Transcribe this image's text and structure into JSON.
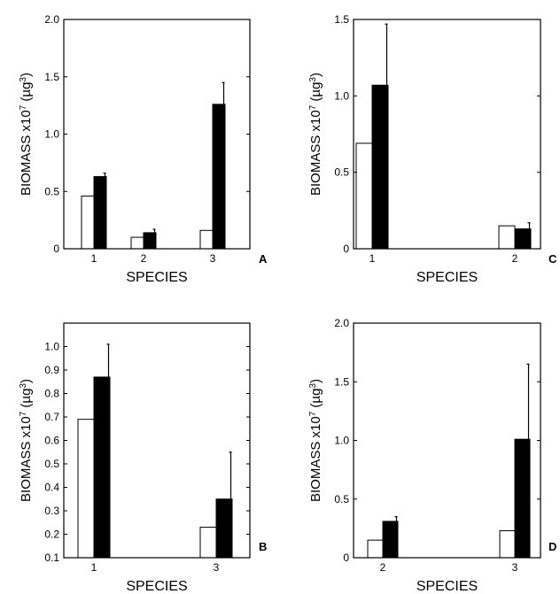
{
  "chart_data": [
    {
      "type": "bar",
      "panel_label": "A",
      "xlabel": "SPECIES",
      "ylabel": "BIOMASS x10",
      "ylabel_exp": "7",
      "ylabel_unit": " (µg",
      "ylabel_unit_exp": "3",
      "ylabel_close": ")",
      "categories": [
        "1",
        "2",
        "3"
      ],
      "ylim": [
        0,
        2.0
      ],
      "yticks": [
        0,
        0.5,
        1.0,
        1.5,
        2.0
      ],
      "ytick_labels": [
        "0",
        "0.5",
        "1.0",
        "1.5",
        "2.0"
      ],
      "series": [
        {
          "fill": "open",
          "color": "#ffffff",
          "values": [
            0.46,
            0.1,
            0.16
          ],
          "errors": [
            null,
            null,
            null
          ]
        },
        {
          "fill": "solid",
          "color": "#000000",
          "values": [
            0.63,
            0.14,
            1.26
          ],
          "errors": [
            0.66,
            0.17,
            1.45
          ]
        }
      ]
    },
    {
      "type": "bar",
      "panel_label": "C",
      "xlabel": "SPECIES",
      "ylabel": "BIOMASS x10",
      "ylabel_exp": "7",
      "ylabel_unit": " (µg",
      "ylabel_unit_exp": "3",
      "ylabel_close": ")",
      "categories": [
        "1",
        "2"
      ],
      "ylim": [
        0,
        1.5
      ],
      "yticks": [
        0,
        0.5,
        1.0,
        1.5
      ],
      "ytick_labels": [
        "0",
        "0.5",
        "1.0",
        "1.5"
      ],
      "series": [
        {
          "fill": "open",
          "color": "#ffffff",
          "values": [
            0.69,
            0.15
          ],
          "errors": [
            null,
            null
          ]
        },
        {
          "fill": "solid",
          "color": "#000000",
          "values": [
            1.07,
            0.13
          ],
          "errors": [
            1.47,
            0.17
          ]
        }
      ]
    },
    {
      "type": "bar",
      "panel_label": "B",
      "xlabel": "SPECIES",
      "ylabel": "BIOMASS x10",
      "ylabel_exp": "7",
      "ylabel_unit": " (µg",
      "ylabel_unit_exp": "3",
      "ylabel_close": ")",
      "categories": [
        "1",
        "3"
      ],
      "ylim": [
        0.1,
        1.1
      ],
      "yticks": [
        0.1,
        0.2,
        0.3,
        0.4,
        0.5,
        0.6,
        0.7,
        0.8,
        0.9,
        1.0
      ],
      "ytick_labels": [
        "0.1",
        "0.2",
        "0.3",
        "0.4",
        "0.5",
        "0.6",
        "0.7",
        "0.8",
        "0.9",
        "1.0"
      ],
      "series": [
        {
          "fill": "open",
          "color": "#ffffff",
          "values": [
            0.69,
            0.23
          ],
          "errors": [
            null,
            null
          ]
        },
        {
          "fill": "solid",
          "color": "#000000",
          "values": [
            0.87,
            0.35
          ],
          "errors": [
            1.01,
            0.55
          ]
        }
      ]
    },
    {
      "type": "bar",
      "panel_label": "D",
      "xlabel": "SPECIES",
      "ylabel": "BIOMASS x10",
      "ylabel_exp": "7",
      "ylabel_unit": " (µg",
      "ylabel_unit_exp": "3",
      "ylabel_close": ")",
      "categories": [
        "2",
        "3"
      ],
      "ylim": [
        0,
        2.0
      ],
      "yticks": [
        0,
        0.5,
        1.0,
        1.5,
        2.0
      ],
      "ytick_labels": [
        "0",
        "0.5",
        "1.0",
        "1.5",
        "2.0"
      ],
      "series": [
        {
          "fill": "open",
          "color": "#ffffff",
          "values": [
            0.15,
            0.23
          ],
          "errors": [
            null,
            null
          ]
        },
        {
          "fill": "solid",
          "color": "#000000",
          "values": [
            0.31,
            1.01
          ],
          "errors": [
            0.35,
            1.65
          ]
        }
      ]
    }
  ]
}
